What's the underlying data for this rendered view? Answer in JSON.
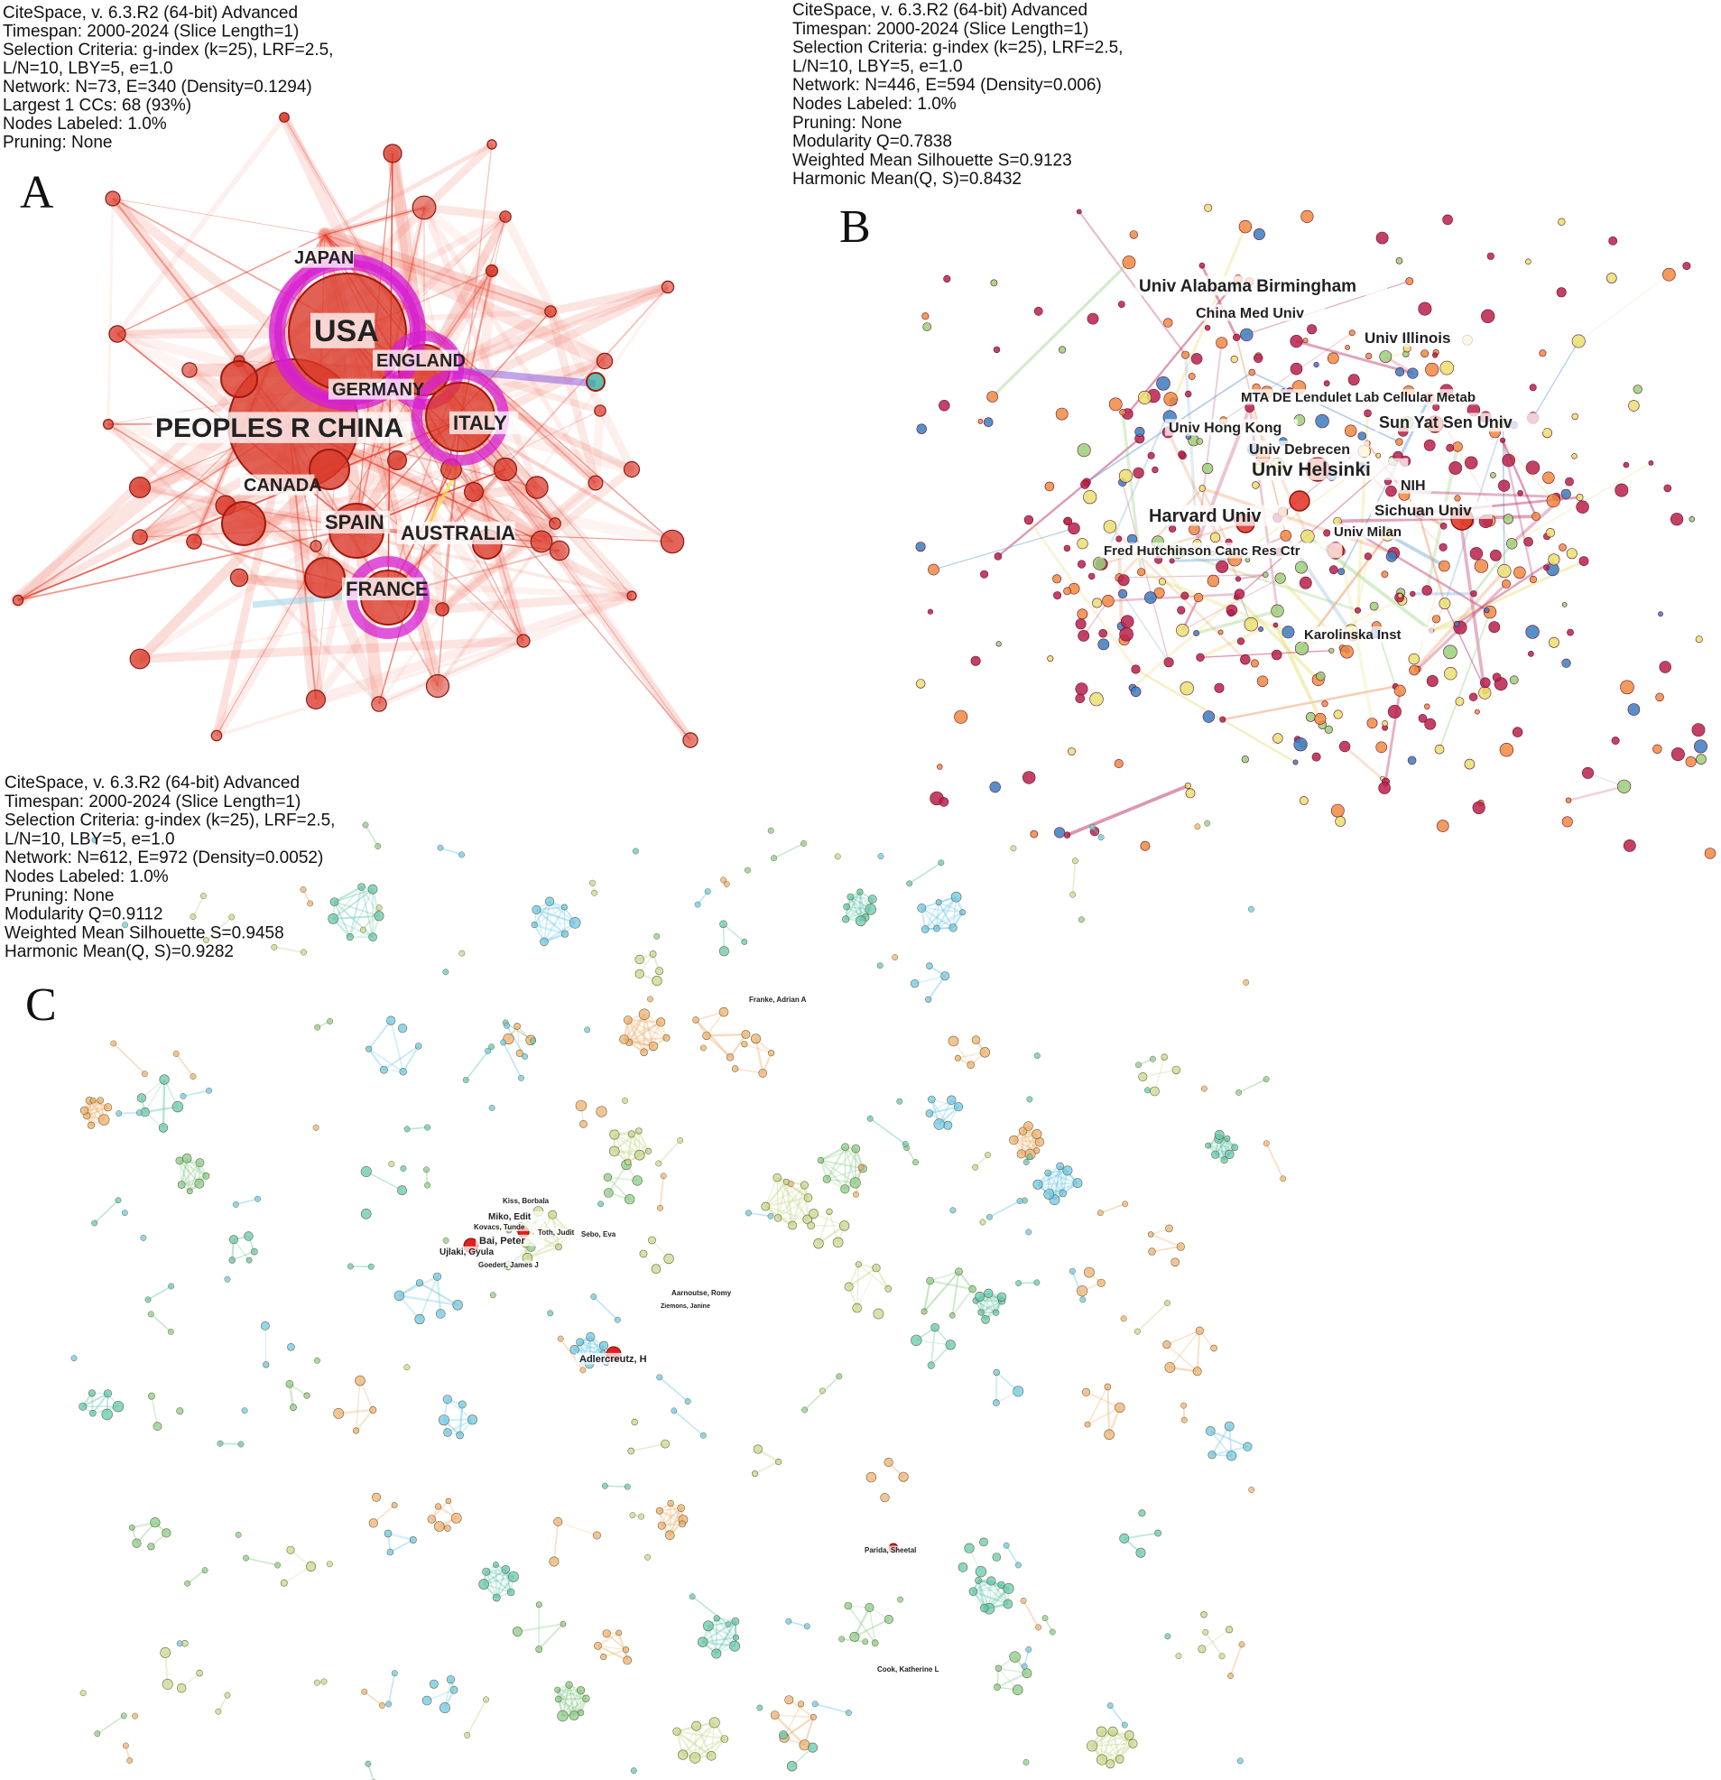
{
  "colors": {
    "panelA_node": "#d93a2b",
    "panelA_edge": "#f08070",
    "panelA_halo": "#d61fd0",
    "panelB_node_red": "#b8204a",
    "panelB_node_blue": "#3a7cc0",
    "panelB_node_orange": "#f08a40",
    "panelB_node_yellow": "#e8e070",
    "panelC_blue": "#6ec8e8",
    "panelC_green": "#8ccc8c",
    "panelC_orange": "#f0b070",
    "panelC_teal": "#66c8b0"
  },
  "panels": [
    {
      "letter": "A",
      "info": [
        "CiteSpace, v. 6.3.R2 (64-bit) Advanced",
        "Timespan: 2000-2024 (Slice Length=1)",
        "Selection Criteria: g-index (k=25), LRF=2.5,",
        "L/N=10, LBY=5, e=1.0",
        "Network: N=73, E=340 (Density=0.1294)",
        "Largest 1 CCs: 68 (93%)",
        "Nodes Labeled: 1.0%",
        "Pruning: None"
      ],
      "labels": [
        "JAPAN",
        "USA",
        "ENGLAND",
        "GERMANY",
        "PEOPLES R CHINA",
        "ITALY",
        "CANADA",
        "SPAIN",
        "AUSTRALIA",
        "FRANCE"
      ]
    },
    {
      "letter": "B",
      "info": [
        "CiteSpace, v. 6.3.R2 (64-bit) Advanced",
        "Timespan: 2000-2024 (Slice Length=1)",
        "Selection Criteria: g-index (k=25), LRF=2.5,",
        "L/N=10, LBY=5, e=1.0",
        "Network: N=446, E=594 (Density=0.006)",
        "Nodes Labeled: 1.0%",
        "Pruning: None",
        "Modularity Q=0.7838",
        "Weighted Mean Silhouette S=0.9123",
        "Harmonic Mean(Q, S)=0.8432"
      ],
      "labels": [
        "Univ Alabama Birmingham",
        "China Med Univ",
        "Univ Illinois",
        "MTA DE Lendulet Lab Cellular Metab",
        "Univ Hong Kong",
        "Sun Yat Sen Univ",
        "Univ Debrecen",
        "Univ Helsinki",
        "NIH",
        "Harvard Univ",
        "Sichuan Univ",
        "Univ Milan",
        "Fred Hutchinson Canc Res Ctr",
        "Karolinska Inst"
      ]
    },
    {
      "letter": "C",
      "info": [
        "CiteSpace, v. 6.3.R2 (64-bit) Advanced",
        "Timespan: 2000-2024 (Slice Length=1)",
        "Selection Criteria: g-index (k=25), LRF=2.5,",
        "L/N=10, LBY=5, e=1.0",
        "Network: N=612, E=972 (Density=0.0052)",
        "Nodes Labeled: 1.0%",
        "Pruning: None",
        "Modularity Q=0.9112",
        "Weighted Mean Silhouette S=0.9458",
        "Harmonic Mean(Q, S)=0.9282"
      ],
      "labels": [
        "Franke, Adrian A",
        "Kiss, Borbala",
        "Miko, Edit",
        "Kovacs, Tunde",
        "Toth, Judit",
        "Sebo, Eva",
        "Bai, Peter",
        "Ujlaki, Gyula",
        "Goedert, James J",
        "Aarnoutse, Romy",
        "Ziemons, Janine",
        "Adlercreutz, H",
        "Parida, Sheetal",
        "Cook, Katherine L"
      ]
    }
  ]
}
